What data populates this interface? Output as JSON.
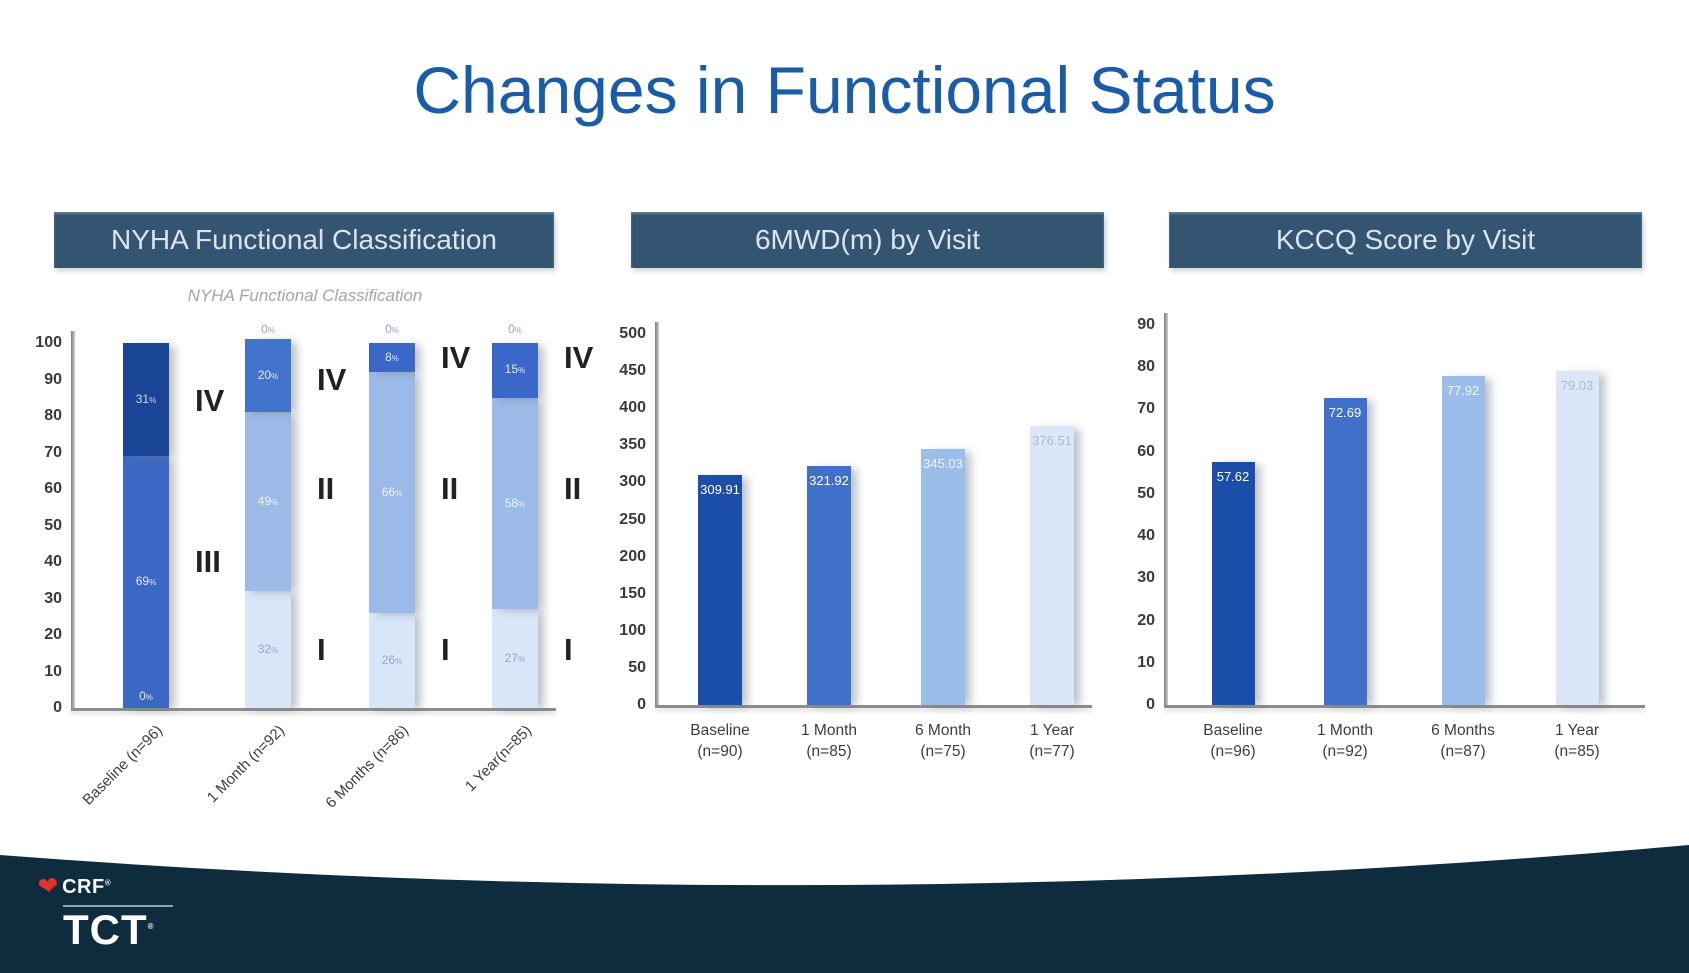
{
  "slide": {
    "title": "Changes in Functional Status"
  },
  "styles": {
    "title_color": "#1a5ca8",
    "header_bg": "#335571",
    "band_color": "#0f2b3e",
    "heart_color": "#d7372f",
    "bar_palette": [
      "#1a4ea8",
      "#4170ca",
      "#9abdea",
      "#dbe7f8"
    ]
  },
  "branding": {
    "crf": "CRF",
    "crf_reg": "®",
    "tct": "TCT",
    "tct_reg": "®",
    "heart_icon": "heart-icon"
  },
  "chart_data": [
    {
      "type": "bar",
      "stacked": true,
      "header": "NYHA Functional Classification",
      "inner_title": "NYHA Functional Classification",
      "value_suffix": "%",
      "ylim": [
        0,
        100
      ],
      "ytick_step": 10,
      "legend_position": "none",
      "grid": false,
      "columns": [
        {
          "category": "Baseline (n=96)",
          "bottom_label": "0",
          "above_label": null,
          "segments": [
            {
              "class": "III",
              "value": 69,
              "color": "#3c68c5",
              "label_color": "#dce6f7"
            },
            {
              "class": "IV",
              "value": 31,
              "color": "#1a4496",
              "label_color": "#ccd9f1"
            }
          ],
          "annotations": [
            {
              "text": "IV",
              "v": 84
            },
            {
              "text": "III",
              "v": 40
            }
          ]
        },
        {
          "category": "1 Month (n=92)",
          "bottom_label": null,
          "above_label": "0",
          "segments": [
            {
              "class": "I",
              "value": 32,
              "color": "#d9e6f7",
              "label_color": "#8ea8cd"
            },
            {
              "class": "II",
              "value": 49,
              "color": "#9bbae7",
              "label_color": "#edf2fb"
            },
            {
              "class": "IV",
              "value": 20,
              "color": "#4273cd",
              "label_color": "#dfe9f9"
            }
          ],
          "annotations": [
            {
              "text": "IV",
              "v": 90
            },
            {
              "text": "II",
              "v": 60
            },
            {
              "text": "I",
              "v": 16
            }
          ]
        },
        {
          "category": "6 Months (n=86)",
          "bottom_label": null,
          "above_label": "0",
          "segments": [
            {
              "class": "I",
              "value": 26,
              "color": "#d9e6f7",
              "label_color": "#8ea8cd"
            },
            {
              "class": "II",
              "value": 66,
              "color": "#9bbae7",
              "label_color": "#edf2fb"
            },
            {
              "class": "IV",
              "value": 8,
              "color": "#3a68c8",
              "label_color": "#dfe9f9"
            }
          ],
          "annotations": [
            {
              "text": "IV",
              "v": 96
            },
            {
              "text": "II",
              "v": 60
            },
            {
              "text": "I",
              "v": 16
            }
          ]
        },
        {
          "category": "1 Year(n=85)",
          "bottom_label": null,
          "above_label": "0",
          "segments": [
            {
              "class": "I",
              "value": 27,
              "color": "#d9e6f7",
              "label_color": "#8ea8cd"
            },
            {
              "class": "II",
              "value": 58,
              "color": "#9bbae7",
              "label_color": "#edf2fb"
            },
            {
              "class": "IV",
              "value": 15,
              "color": "#3a68c8",
              "label_color": "#dfe9f9"
            }
          ],
          "annotations": [
            {
              "text": "IV",
              "v": 96
            },
            {
              "text": "II",
              "v": 60
            },
            {
              "text": "I",
              "v": 16
            }
          ]
        }
      ]
    },
    {
      "type": "bar",
      "stacked": false,
      "header": "6MWD(m) by Visit",
      "ylim": [
        0,
        500
      ],
      "ytick_step": 50,
      "grid": false,
      "bars": [
        {
          "label": "Baseline",
          "sub": "(n=90)",
          "value": 309.91,
          "color": "#1a4ea8",
          "label_color": "#ffffff"
        },
        {
          "label": "1 Month",
          "sub": "(n=85)",
          "value": 321.92,
          "color": "#4170ca",
          "label_color": "#ffffff"
        },
        {
          "label": "6 Month",
          "sub": "(n=75)",
          "value": 345.03,
          "color": "#9abdea",
          "label_color": "#f2f6fc"
        },
        {
          "label": "1 Year",
          "sub": "(n=77)",
          "value": 376.51,
          "color": "#dbe7f8",
          "label_color": "#a9bbd3"
        }
      ]
    },
    {
      "type": "bar",
      "stacked": false,
      "header": "KCCQ Score by Visit",
      "ylim": [
        0,
        90
      ],
      "ytick_step": 10,
      "grid": false,
      "bars": [
        {
          "label": "Baseline",
          "sub": "(n=96)",
          "value": 57.62,
          "color": "#1a4ea8",
          "label_color": "#ffffff"
        },
        {
          "label": "1 Month",
          "sub": "(n=92)",
          "value": 72.69,
          "color": "#4170ca",
          "label_color": "#ffffff"
        },
        {
          "label": "6 Months",
          "sub": "(n=87)",
          "value": 77.92,
          "color": "#9abdea",
          "label_color": "#f2f6fc"
        },
        {
          "label": "1 Year",
          "sub": "(n=85)",
          "value": 79.03,
          "color": "#dbe7f8",
          "label_color": "#a9bbd3"
        }
      ]
    }
  ]
}
